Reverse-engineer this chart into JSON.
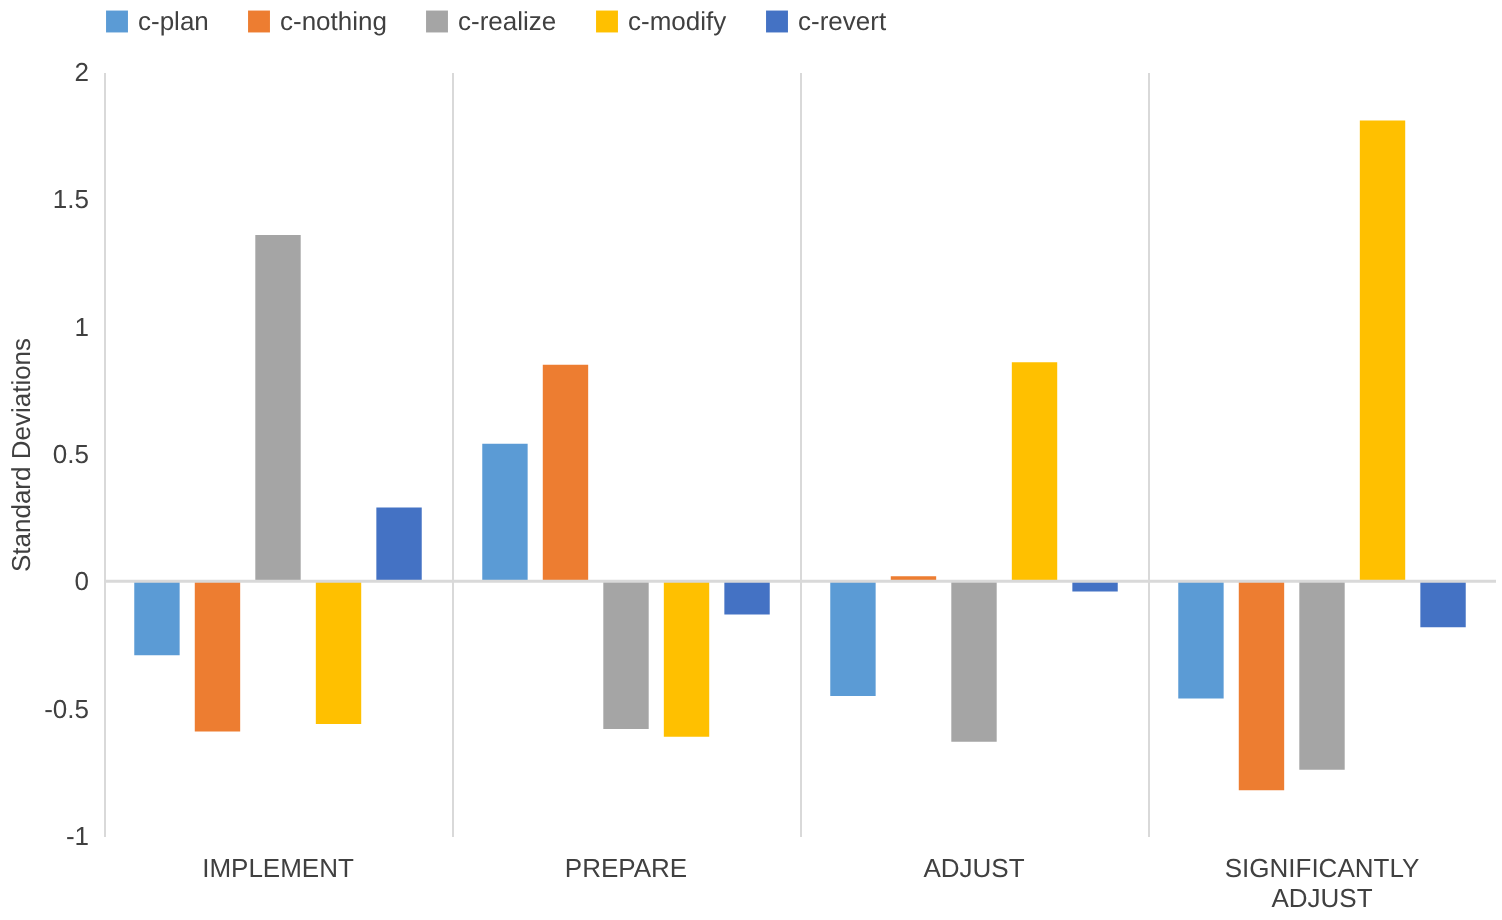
{
  "chart_data": {
    "type": "bar",
    "ylabel": "Standard Deviations",
    "categories": [
      "IMPLEMENT",
      "PREPARE",
      "ADJUST",
      "SIGNIFICANTLY ADJUST"
    ],
    "series": [
      {
        "name": "c-plan",
        "color": "#5b9bd5",
        "values": [
          -0.29,
          0.54,
          -0.45,
          -0.46
        ]
      },
      {
        "name": "c-nothing",
        "color": "#ed7d31",
        "values": [
          -0.59,
          0.85,
          0.02,
          -0.82
        ]
      },
      {
        "name": "c-realize",
        "color": "#a5a5a5",
        "values": [
          1.36,
          -0.58,
          -0.63,
          -0.74
        ]
      },
      {
        "name": "c-modify",
        "color": "#ffc000",
        "values": [
          -0.56,
          -0.61,
          0.86,
          1.81
        ]
      },
      {
        "name": "c-revert",
        "color": "#4472c4",
        "values": [
          0.29,
          -0.13,
          -0.04,
          -0.18
        ]
      }
    ],
    "ylim": [
      -1,
      2
    ],
    "yticks": [
      -1,
      -0.5,
      0,
      0.5,
      1,
      1.5,
      2
    ],
    "ref_lines": [
      {
        "axis": "y",
        "value": 0,
        "color": "#d9d9d9"
      }
    ],
    "grid": "x",
    "legend": "top"
  }
}
